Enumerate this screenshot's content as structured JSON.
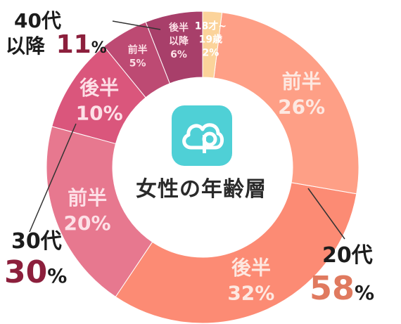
{
  "chart_data": {
    "type": "donut",
    "title": "女性の年齢層",
    "slices": [
      {
        "label_line1": "18才~",
        "label_line2": "19歳",
        "value": 2,
        "value_label": "2%",
        "color": "#fbd39a",
        "text_color": "#ffffff"
      },
      {
        "label_line1": "前半",
        "label_line2": "",
        "value": 26,
        "value_label": "26%",
        "color": "#fe9f86",
        "text_color": "#fde8e1"
      },
      {
        "label_line1": "後半",
        "label_line2": "",
        "value": 32,
        "value_label": "32%",
        "color": "#fc8b74",
        "text_color": "#fde8e1"
      },
      {
        "label_line1": "前半",
        "label_line2": "",
        "value": 20,
        "value_label": "20%",
        "color": "#e7788f",
        "text_color": "#fde0e7"
      },
      {
        "label_line1": "後半",
        "label_line2": "",
        "value": 10,
        "value_label": "10%",
        "color": "#da567c",
        "text_color": "#fde0e7"
      },
      {
        "label_line1": "前半",
        "label_line2": "",
        "value": 5,
        "value_label": "5%",
        "color": "#bd4a73",
        "text_color": "#fde0e7"
      },
      {
        "label_line1": "後半",
        "label_line2": "以降",
        "value": 6,
        "value_label": "6%",
        "color": "#a83f6a",
        "text_color": "#fde0e7"
      }
    ],
    "groups": [
      {
        "name_line1": "20代",
        "name_line2": "",
        "pct": "58",
        "pct_color": "#e07a5f"
      },
      {
        "name_line1": "30代",
        "name_line2": "",
        "pct": "30",
        "pct_color": "#8c1f3c"
      },
      {
        "name_line1": "40代",
        "name_line2": "以降",
        "pct": "11",
        "pct_color": "#8c1f3c"
      }
    ],
    "percent_sign": "%"
  },
  "center": {
    "title": "女性の年齢層",
    "app_icon": "pairs-p-cloud-icon"
  }
}
